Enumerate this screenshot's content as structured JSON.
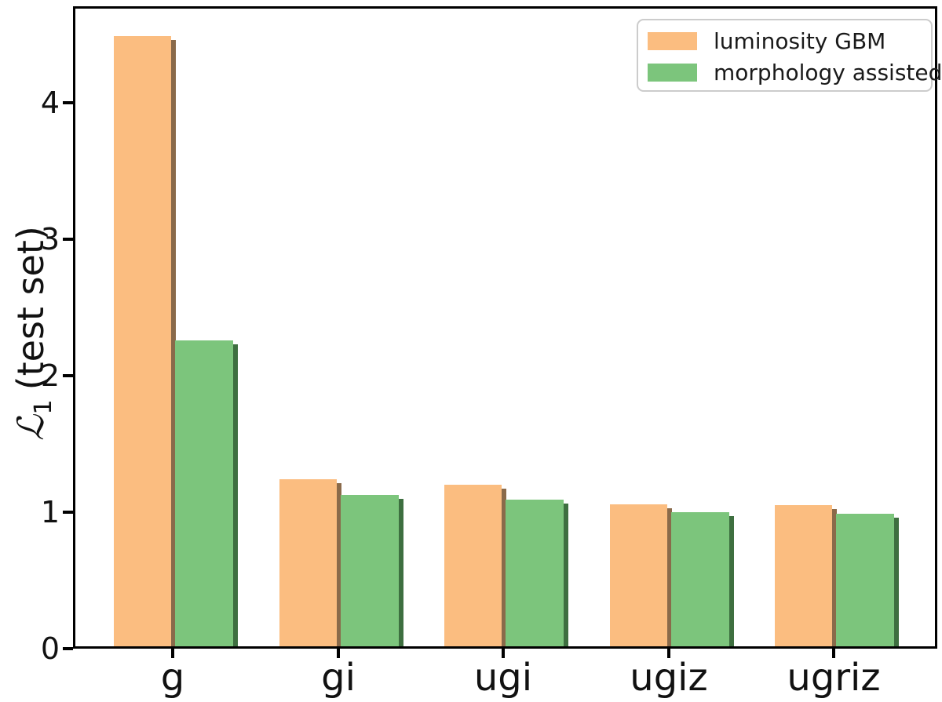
{
  "figure": {
    "background": "#ffffff",
    "frame_color": "#000000"
  },
  "chart_data": {
    "type": "bar",
    "categories": [
      "g",
      "gi",
      "ugi",
      "ugiz",
      "ugriz"
    ],
    "series": [
      {
        "name": "luminosity GBM",
        "color": "#FBBD80",
        "shadow_color": "#8A6A4A",
        "values": [
          4.49,
          1.24,
          1.2,
          1.06,
          1.05
        ]
      },
      {
        "name": "morphology assisted",
        "color": "#7CC57C",
        "shadow_color": "#3E6F40",
        "values": [
          2.26,
          1.13,
          1.09,
          1.0,
          0.99
        ]
      }
    ],
    "ylabel": "ℒ₁ (test set)",
    "ylabel_parts": {
      "symbol": "ℒ",
      "subscript": "1",
      "suffix": "(test set)"
    },
    "xlabel": "",
    "yticks": [
      0,
      1,
      2,
      3,
      4
    ],
    "ylim": [
      0,
      4.71
    ],
    "grid": false,
    "legend_position": "upper right"
  }
}
